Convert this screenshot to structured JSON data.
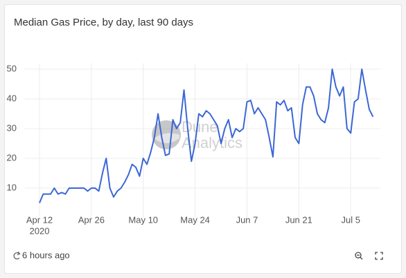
{
  "chart_data": {
    "type": "line",
    "title": "Median Gas Price, by day, last 90 days",
    "x": [
      "2020-04-12",
      "2020-04-13",
      "2020-04-14",
      "2020-04-15",
      "2020-04-16",
      "2020-04-17",
      "2020-04-18",
      "2020-04-19",
      "2020-04-20",
      "2020-04-21",
      "2020-04-22",
      "2020-04-23",
      "2020-04-24",
      "2020-04-25",
      "2020-04-26",
      "2020-04-27",
      "2020-04-28",
      "2020-04-29",
      "2020-04-30",
      "2020-05-01",
      "2020-05-02",
      "2020-05-03",
      "2020-05-04",
      "2020-05-05",
      "2020-05-06",
      "2020-05-07",
      "2020-05-08",
      "2020-05-09",
      "2020-05-10",
      "2020-05-11",
      "2020-05-12",
      "2020-05-13",
      "2020-05-14",
      "2020-05-15",
      "2020-05-16",
      "2020-05-17",
      "2020-05-18",
      "2020-05-19",
      "2020-05-20",
      "2020-05-21",
      "2020-05-22",
      "2020-05-23",
      "2020-05-24",
      "2020-05-25",
      "2020-05-26",
      "2020-05-27",
      "2020-05-28",
      "2020-05-29",
      "2020-05-30",
      "2020-05-31",
      "2020-06-01",
      "2020-06-02",
      "2020-06-03",
      "2020-06-04",
      "2020-06-05",
      "2020-06-06",
      "2020-06-07",
      "2020-06-08",
      "2020-06-09",
      "2020-06-10",
      "2020-06-11",
      "2020-06-12",
      "2020-06-13",
      "2020-06-14",
      "2020-06-15",
      "2020-06-16",
      "2020-06-17",
      "2020-06-18",
      "2020-06-19",
      "2020-06-20",
      "2020-06-21",
      "2020-06-22",
      "2020-06-23",
      "2020-06-24",
      "2020-06-25",
      "2020-06-26",
      "2020-06-27",
      "2020-06-28",
      "2020-06-29",
      "2020-06-30",
      "2020-07-01",
      "2020-07-02",
      "2020-07-03",
      "2020-07-04",
      "2020-07-05",
      "2020-07-06",
      "2020-07-07",
      "2020-07-08",
      "2020-07-09",
      "2020-07-10",
      "2020-07-11"
    ],
    "values": [
      5,
      8,
      8,
      8,
      10,
      8,
      8.5,
      8,
      10,
      10,
      10,
      10,
      10,
      9,
      10,
      10,
      9,
      15,
      20,
      10,
      7,
      9,
      10,
      12,
      14.5,
      18,
      17,
      14,
      20,
      18,
      22,
      27,
      35,
      27,
      21,
      21.5,
      33,
      30,
      32,
      43,
      30,
      19,
      25,
      35,
      34,
      36,
      35,
      33,
      31,
      25,
      30,
      33,
      27,
      30,
      29,
      30,
      39,
      39.5,
      35,
      37,
      35,
      33,
      27,
      20.5,
      39,
      38,
      39.5,
      36,
      37,
      27,
      25,
      38,
      44,
      44,
      41,
      35,
      33,
      32,
      37,
      50,
      44,
      41,
      44,
      30,
      28.5,
      39,
      40,
      50,
      43,
      36.5,
      34
    ],
    "color": "#3b66d6",
    "xlim": [
      "2020-04-08",
      "2020-07-13"
    ],
    "xticks": [
      {
        "value": "2020-04-12",
        "label": "Apr 12"
      },
      {
        "value": "2020-04-26",
        "label": "Apr 26"
      },
      {
        "value": "2020-05-10",
        "label": "May 10"
      },
      {
        "value": "2020-05-24",
        "label": "May 24"
      },
      {
        "value": "2020-06-07",
        "label": "Jun 7"
      },
      {
        "value": "2020-06-21",
        "label": "Jun 21"
      },
      {
        "value": "2020-07-05",
        "label": "Jul 5"
      }
    ],
    "x_year_label": "2020",
    "ylim": [
      0,
      52
    ],
    "yticks": [
      10,
      20,
      30,
      40,
      50
    ],
    "grid": true,
    "watermark": [
      "Dune",
      "Analytics"
    ],
    "updated": "6 hours ago"
  }
}
